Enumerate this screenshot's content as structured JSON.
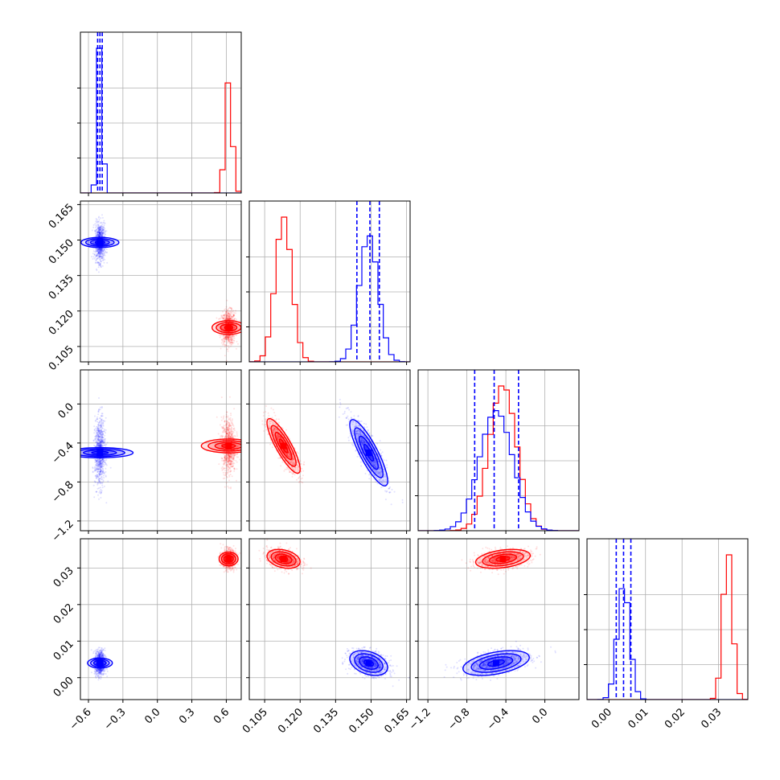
{
  "chart_data": {
    "type": "corner",
    "grid": true,
    "series": [
      {
        "color": "#ff0000",
        "center": [
          0.62,
          0.113,
          -0.43,
          0.0325
        ],
        "sd": [
          0.03,
          0.0035,
          0.14,
          0.0013
        ]
      },
      {
        "color": "#0000ff",
        "center": [
          -0.5,
          0.149,
          -0.5,
          0.004
        ],
        "sd": [
          0.022,
          0.004,
          0.17,
          0.0017
        ]
      }
    ],
    "quantile_lines": [
      [
        -0.52,
        -0.5,
        -0.48
      ],
      [
        0.144,
        0.1495,
        0.1535
      ],
      [
        -0.72,
        -0.52,
        -0.27
      ],
      [
        0.002,
        0.004,
        0.006
      ]
    ],
    "axes": [
      {
        "range": [
          -0.67,
          0.73
        ],
        "ticks": [
          "-0.6",
          "-0.3",
          "0.0",
          "0.3",
          "0.6"
        ],
        "tick_values": [
          -0.6,
          -0.3,
          0.0,
          0.3,
          0.6
        ]
      },
      {
        "range": [
          0.0985,
          0.1665
        ],
        "ticks": [
          "0.105",
          "0.120",
          "0.135",
          "0.150",
          "0.165"
        ],
        "tick_values": [
          0.105,
          0.12,
          0.135,
          0.15,
          0.165
        ]
      },
      {
        "range": [
          -1.3,
          0.35
        ],
        "ticks": [
          "-1.2",
          "-0.8",
          "-0.4",
          "0.0"
        ],
        "tick_values": [
          -1.2,
          -0.8,
          -0.4,
          0.0
        ]
      },
      {
        "range": [
          -0.006,
          0.038
        ],
        "ticks": [
          "0.00",
          "0.01",
          "0.02",
          "0.03"
        ],
        "tick_values": [
          0.0,
          0.01,
          0.02,
          0.03
        ]
      }
    ],
    "contour_levels": [
      0.5,
      1.0,
      1.5,
      2.0
    ]
  }
}
